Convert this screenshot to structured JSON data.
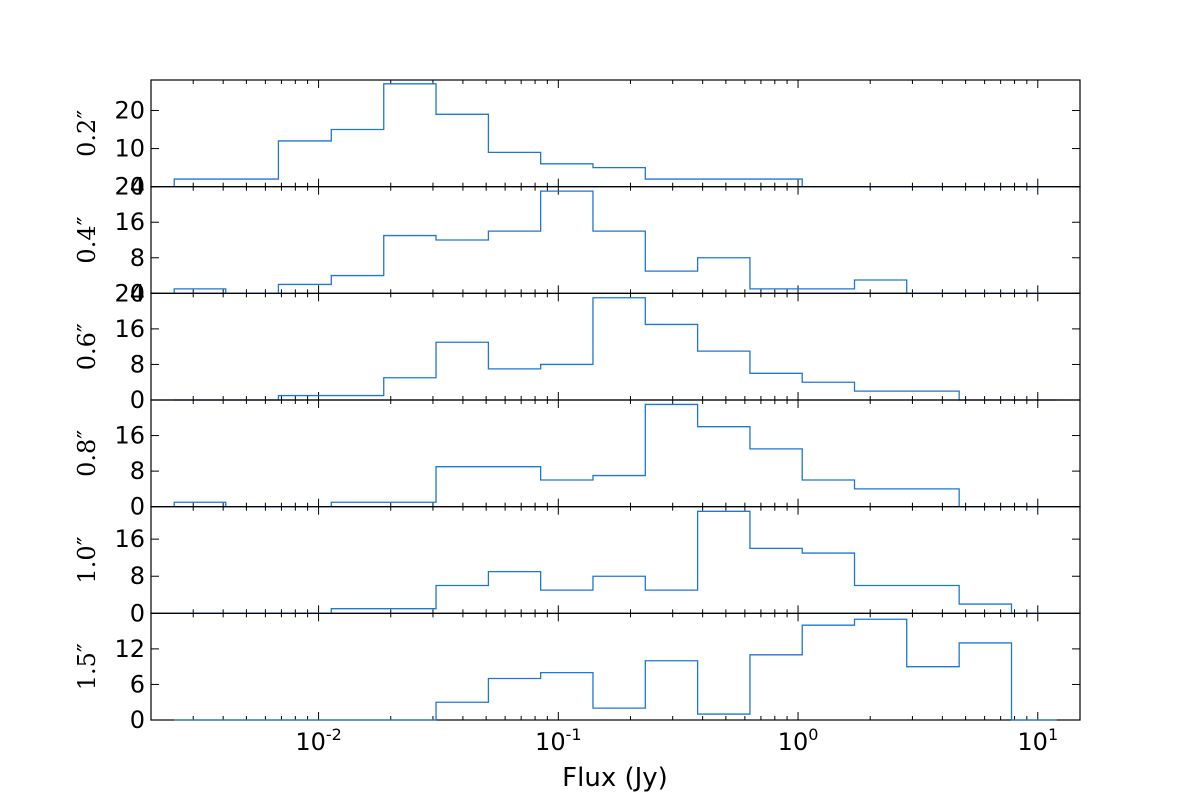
{
  "chart_data": {
    "type": "step",
    "xlabel": "Flux (Jy)",
    "xscale": "log",
    "xlim": [
      0.002,
      15
    ],
    "x_ticks": [
      {
        "value": 0.01,
        "base": "10",
        "exp": "-2"
      },
      {
        "value": 0.1,
        "base": "10",
        "exp": "-1"
      },
      {
        "value": 1,
        "base": "10",
        "exp": "0"
      },
      {
        "value": 10,
        "base": "10",
        "exp": "1"
      }
    ],
    "bin_edges": [
      0.0025,
      0.0041,
      0.0068,
      0.0113,
      0.0187,
      0.0309,
      0.0511,
      0.0844,
      0.1395,
      0.2306,
      0.3811,
      0.63,
      1.041,
      1.72,
      2.84,
      4.7,
      7.77,
      12.0
    ],
    "color": "#1f77d4",
    "panels": [
      {
        "label": "0.2″",
        "ylim": [
          0,
          28
        ],
        "yticks": [
          {
            "value": 0,
            "label": "0"
          },
          {
            "value": 10,
            "label": "10"
          },
          {
            "value": 20,
            "label": "20"
          }
        ],
        "values": [
          2,
          2,
          12,
          15,
          27,
          19,
          9,
          6,
          5,
          2,
          2,
          2,
          0,
          0,
          0,
          0,
          0
        ]
      },
      {
        "label": "0.4″",
        "ylim": [
          0,
          24
        ],
        "yticks": [
          {
            "value": 0,
            "label": "0"
          },
          {
            "value": 8,
            "label": "8"
          },
          {
            "value": 16,
            "label": "16"
          },
          {
            "value": 24,
            "label": "24"
          }
        ],
        "values": [
          1,
          0,
          2,
          4,
          13,
          12,
          14,
          23,
          14,
          5,
          8,
          1,
          1,
          3,
          0,
          0,
          0
        ]
      },
      {
        "label": "0.6″",
        "ylim": [
          0,
          24
        ],
        "yticks": [
          {
            "value": 0,
            "label": "0"
          },
          {
            "value": 8,
            "label": "8"
          },
          {
            "value": 16,
            "label": "16"
          },
          {
            "value": 24,
            "label": "24"
          }
        ],
        "values": [
          0,
          0,
          1,
          1,
          5,
          13,
          7,
          8,
          23,
          17,
          11,
          6,
          4,
          2,
          2,
          0,
          0
        ]
      },
      {
        "label": "0.8″",
        "ylim": [
          0,
          24
        ],
        "yticks": [
          {
            "value": 0,
            "label": "0"
          },
          {
            "value": 8,
            "label": "8"
          },
          {
            "value": 16,
            "label": "16"
          }
        ],
        "values": [
          1,
          0,
          0,
          1,
          1,
          9,
          9,
          6,
          7,
          23,
          18,
          13,
          6,
          4,
          4,
          0,
          0
        ]
      },
      {
        "label": "1.0″",
        "ylim": [
          0,
          23
        ],
        "yticks": [
          {
            "value": 0,
            "label": "0"
          },
          {
            "value": 8,
            "label": "8"
          },
          {
            "value": 16,
            "label": "16"
          }
        ],
        "values": [
          0,
          0,
          0,
          1,
          1,
          6,
          9,
          5,
          8,
          5,
          22,
          14,
          13,
          6,
          6,
          2,
          0
        ]
      },
      {
        "label": "1.5″",
        "ylim": [
          0,
          18
        ],
        "yticks": [
          {
            "value": 0,
            "label": "0"
          },
          {
            "value": 6,
            "label": "6"
          },
          {
            "value": 12,
            "label": "12"
          }
        ],
        "values": [
          0,
          0,
          0,
          0,
          0,
          3,
          7,
          8,
          2,
          10,
          1,
          11,
          16,
          17,
          9,
          13,
          0
        ]
      }
    ]
  }
}
